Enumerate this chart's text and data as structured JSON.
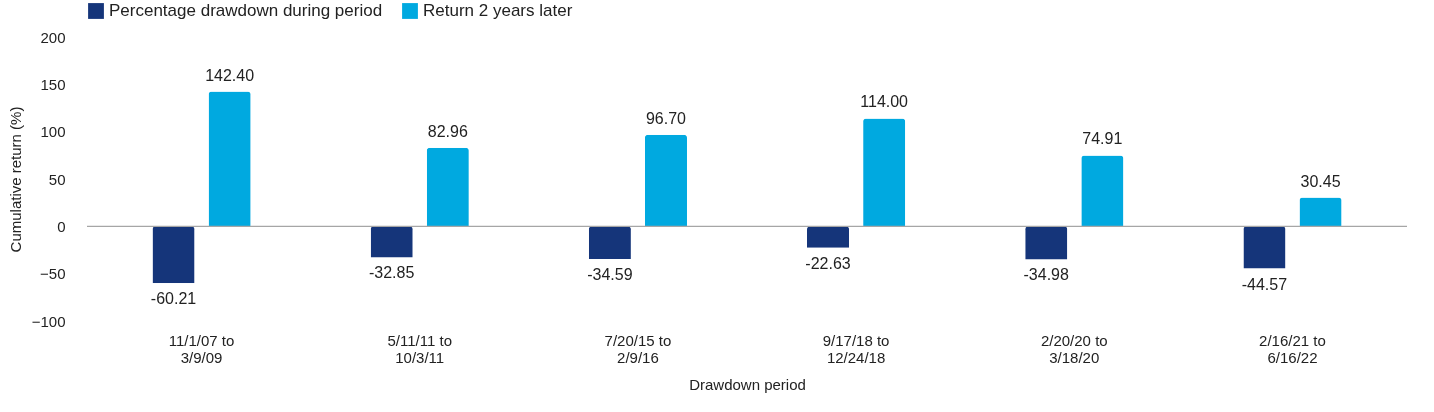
{
  "chart_data": {
    "type": "bar",
    "categories": [
      "11/1/07 to\n3/9/09",
      "5/11/11 to\n10/3/11",
      "7/20/15 to\n2/9/16",
      "9/17/18 to\n12/24/18",
      "2/20/20 to\n3/18/20",
      "2/16/21 to\n6/16/22"
    ],
    "series": [
      {
        "name": "Percentage drawdown during period",
        "color": "#15357a",
        "values": [
          -60.21,
          -32.85,
          -34.59,
          -22.63,
          -34.98,
          -44.57
        ],
        "value_labels": [
          "-60.21",
          "-32.85",
          "-34.59",
          "-22.63",
          "-34.98",
          "-44.57"
        ]
      },
      {
        "name": "Return 2 years later",
        "color": "#00a9e0",
        "values": [
          142.4,
          82.96,
          96.7,
          114.0,
          74.91,
          30.45
        ],
        "value_labels": [
          "142.40",
          "82.96",
          "96.70",
          "114.00",
          "74.91",
          "30.45"
        ]
      }
    ],
    "xlabel": "Drawdown period",
    "ylabel": "Cumulative return (%)",
    "ylim": [
      -100,
      200
    ],
    "yticks": [
      -100,
      -50,
      0,
      50,
      100,
      150,
      200
    ],
    "ref_lines": [
      {
        "axis": "y",
        "value": 0,
        "color": "#a6a6a6"
      }
    ],
    "grid": false,
    "legend": "top"
  }
}
